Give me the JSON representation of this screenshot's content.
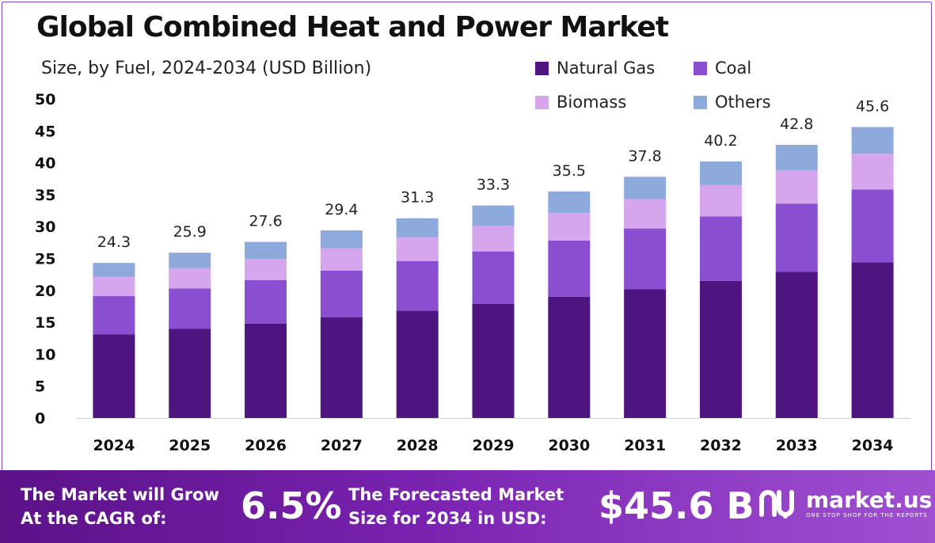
{
  "chart_data": {
    "type": "bar",
    "stacked": true,
    "title": "Global Combined Heat and Power Market",
    "subtitle": "Size, by Fuel, 2024-2034 (USD Billion)",
    "xlabel": "",
    "ylabel": "",
    "ylim": [
      0,
      50
    ],
    "yticks": [
      "0",
      "5",
      "10",
      "15",
      "20",
      "25",
      "30",
      "35",
      "40",
      "45",
      "50"
    ],
    "categories": [
      "2024",
      "2025",
      "2026",
      "2027",
      "2028",
      "2029",
      "2030",
      "2031",
      "2032",
      "2033",
      "2034"
    ],
    "series": [
      {
        "name": "Natural Gas",
        "color": "#4e1580",
        "values": [
          13.1,
          14.0,
          14.8,
          15.8,
          16.8,
          17.9,
          19.0,
          20.2,
          21.5,
          22.9,
          24.4
        ]
      },
      {
        "name": "Coal",
        "color": "#8a4fd0",
        "values": [
          6.0,
          6.3,
          6.8,
          7.3,
          7.8,
          8.2,
          8.8,
          9.5,
          10.1,
          10.7,
          11.4
        ]
      },
      {
        "name": "Biomass",
        "color": "#d5a6ec",
        "values": [
          3.0,
          3.2,
          3.3,
          3.5,
          3.7,
          4.0,
          4.3,
          4.6,
          4.9,
          5.2,
          5.6
        ]
      },
      {
        "name": "Others",
        "color": "#8ea9dc",
        "values": [
          2.2,
          2.4,
          2.7,
          2.8,
          3.0,
          3.2,
          3.4,
          3.5,
          3.7,
          4.0,
          4.2
        ]
      }
    ],
    "totals": [
      "24.3",
      "25.9",
      "27.6",
      "29.4",
      "31.3",
      "33.3",
      "35.5",
      "37.8",
      "40.2",
      "42.8",
      "45.6"
    ],
    "legend": "top-right",
    "grid": false
  },
  "banner": {
    "cagr_line1": "The Market will Grow",
    "cagr_line2": "At the CAGR of:",
    "cagr_value": "6.5%",
    "forecast_line1": "The Forecasted Market",
    "forecast_line2": "Size for 2034 in USD:",
    "forecast_value": "$45.6 B",
    "brand_name": "market.us",
    "brand_tagline": "ONE STOP SHOP FOR THE REPORTS",
    "brand_icon": "market-us-logo-icon"
  },
  "colors": {
    "banner_start": "#5b1287",
    "banner_end": "#a04fd1",
    "frame": "#8a44c8"
  }
}
